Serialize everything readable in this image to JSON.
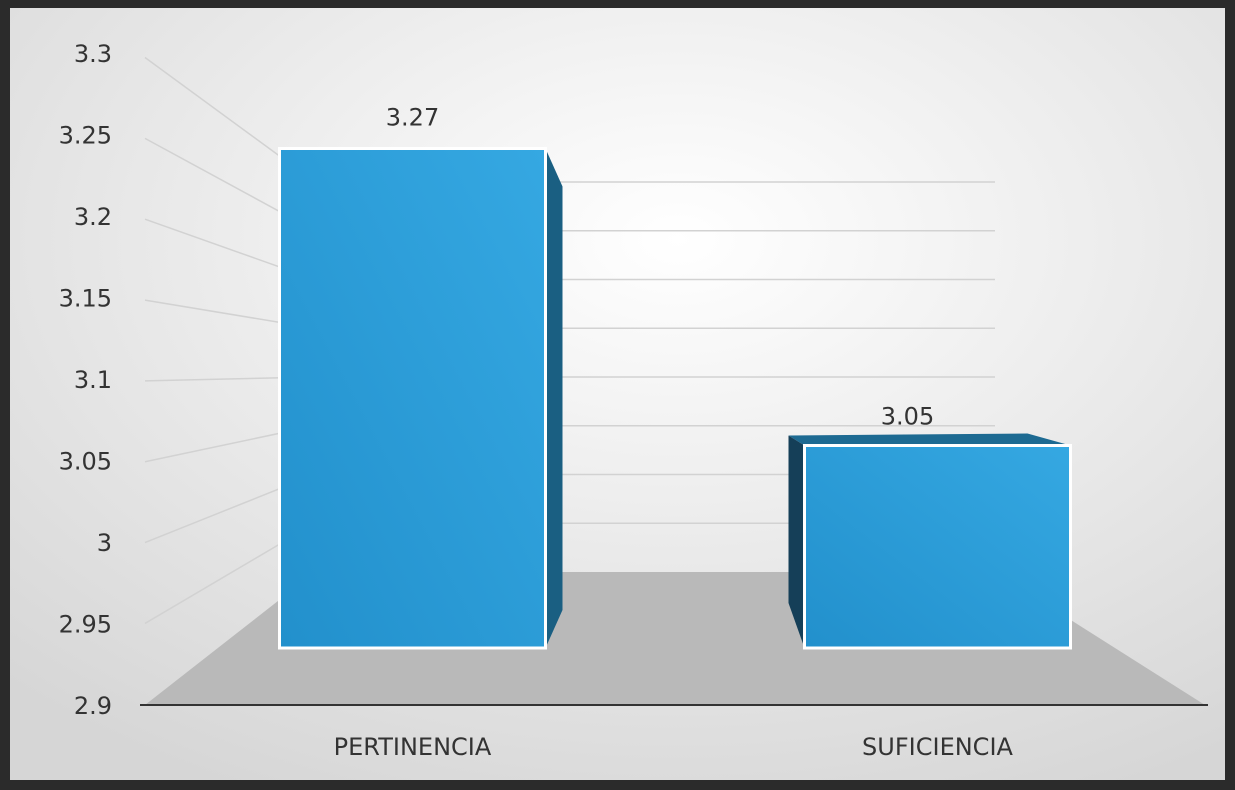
{
  "chart_data": {
    "type": "bar3d",
    "categories": [
      "PERTINENCIA",
      "SUFICIENCIA"
    ],
    "values": [
      3.27,
      3.05
    ],
    "color": "#2a9ad6",
    "ylim": [
      2.9,
      3.3
    ],
    "yticks": [
      2.9,
      2.95,
      3,
      3.05,
      3.1,
      3.15,
      3.2,
      3.25,
      3.3
    ],
    "grid": true
  }
}
